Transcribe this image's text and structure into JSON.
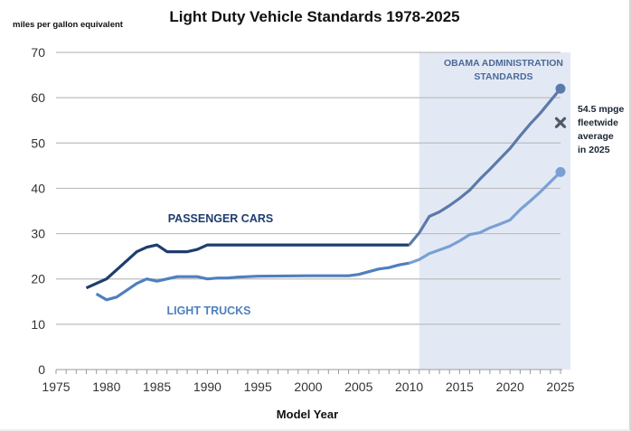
{
  "chart_data": {
    "type": "line",
    "title": "Light Duty Vehicle Standards 1978-2025",
    "xlabel": "Model Year",
    "ylabel": "miles per gallon equivalent",
    "xlim": [
      1975,
      2025
    ],
    "ylim": [
      0,
      70
    ],
    "x_ticks": [
      "1975",
      "1980",
      "1985",
      "1990",
      "1995",
      "2000",
      "2005",
      "2010",
      "2015",
      "2020",
      "2025"
    ],
    "y_ticks": [
      "0",
      "10",
      "20",
      "30",
      "40",
      "50",
      "60",
      "70"
    ],
    "grid": "horizontal",
    "shaded_region": {
      "label_line1": "OBAMA  ADMINISTRATION",
      "label_line2": "STANDARDS",
      "from": 2011,
      "to": 2026,
      "color": "#e3e9f4"
    },
    "series": [
      {
        "name": "PASSENGER CARS",
        "color": "#1f3d6e",
        "future_color": "#5b7aaa",
        "end_marker": true,
        "points": [
          [
            1978,
            18
          ],
          [
            1979,
            19
          ],
          [
            1980,
            20
          ],
          [
            1981,
            22
          ],
          [
            1982,
            24
          ],
          [
            1983,
            26
          ],
          [
            1984,
            27
          ],
          [
            1985,
            27.5
          ],
          [
            1986,
            26
          ],
          [
            1987,
            26
          ],
          [
            1988,
            26
          ],
          [
            1989,
            26.5
          ],
          [
            1990,
            27.5
          ],
          [
            1995,
            27.5
          ],
          [
            2000,
            27.5
          ],
          [
            2005,
            27.5
          ],
          [
            2010,
            27.5
          ],
          [
            2011,
            30.2
          ],
          [
            2012,
            33.8
          ],
          [
            2013,
            34.8
          ],
          [
            2014,
            36.2
          ],
          [
            2015,
            37.8
          ],
          [
            2016,
            39.6
          ],
          [
            2017,
            42
          ],
          [
            2018,
            44.2
          ],
          [
            2019,
            46.5
          ],
          [
            2020,
            48.8
          ],
          [
            2021,
            51.6
          ],
          [
            2022,
            54.2
          ],
          [
            2023,
            56.6
          ],
          [
            2024,
            59.3
          ],
          [
            2025,
            62
          ]
        ]
      },
      {
        "name": "LIGHT TRUCKS",
        "color": "#4f7fbf",
        "future_color": "#7aa0d4",
        "end_marker": true,
        "points": [
          [
            1979,
            16.7
          ],
          [
            1980,
            15.4
          ],
          [
            1981,
            16
          ],
          [
            1982,
            17.5
          ],
          [
            1983,
            19
          ],
          [
            1984,
            20
          ],
          [
            1985,
            19.5
          ],
          [
            1986,
            20
          ],
          [
            1987,
            20.5
          ],
          [
            1988,
            20.5
          ],
          [
            1989,
            20.5
          ],
          [
            1990,
            20
          ],
          [
            1991,
            20.2
          ],
          [
            1992,
            20.2
          ],
          [
            1993,
            20.4
          ],
          [
            1994,
            20.5
          ],
          [
            1995,
            20.6
          ],
          [
            2000,
            20.7
          ],
          [
            2004,
            20.7
          ],
          [
            2005,
            21
          ],
          [
            2006,
            21.6
          ],
          [
            2007,
            22.2
          ],
          [
            2008,
            22.5
          ],
          [
            2009,
            23.1
          ],
          [
            2010,
            23.5
          ],
          [
            2011,
            24.3
          ],
          [
            2012,
            25.6
          ],
          [
            2013,
            26.4
          ],
          [
            2014,
            27.2
          ],
          [
            2015,
            28.4
          ],
          [
            2016,
            29.8
          ],
          [
            2017,
            30.2
          ],
          [
            2018,
            31.3
          ],
          [
            2019,
            32.1
          ],
          [
            2020,
            33
          ],
          [
            2021,
            35.3
          ],
          [
            2022,
            37.2
          ],
          [
            2023,
            39.2
          ],
          [
            2024,
            41.4
          ],
          [
            2025,
            43.6
          ]
        ]
      }
    ],
    "annotations": [
      {
        "type": "x-marker",
        "x": 2025,
        "y": 54.5,
        "color": "#505a66",
        "text_lines": [
          "54.5 mpge",
          "fleetwide",
          "average",
          "in 2025"
        ]
      }
    ]
  }
}
